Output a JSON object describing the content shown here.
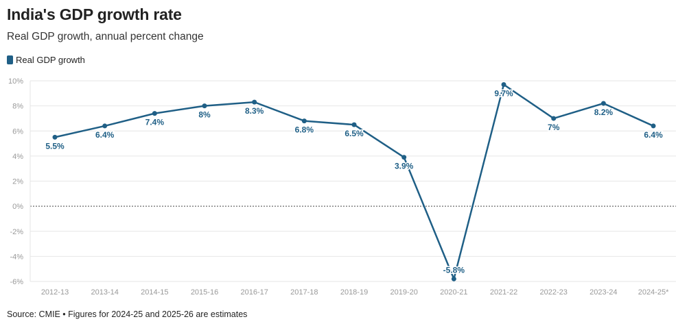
{
  "header": {
    "title": "India's GDP growth rate",
    "subtitle": "Real GDP growth, annual percent change"
  },
  "legend": {
    "label": "Real GDP growth"
  },
  "footer": {
    "source": "Source: CMIE • Figures for 2024-25 and 2025-26 are estimates"
  },
  "colors": {
    "line": "#1f5f86",
    "grid": "#e6e6e6",
    "zero": "#444444",
    "tick": "#999999"
  },
  "chart_data": {
    "type": "line",
    "title": "India's GDP growth rate",
    "subtitle": "Real GDP growth, annual percent change",
    "categories": [
      "2012-13",
      "2013-14",
      "2014-15",
      "2015-16",
      "2016-17",
      "2017-18",
      "2018-19",
      "2019-20",
      "2020-21",
      "2021-22",
      "2022-23",
      "2023-24",
      "2024-25*"
    ],
    "series": [
      {
        "name": "Real GDP growth",
        "values": [
          5.5,
          6.4,
          7.4,
          8.0,
          8.3,
          6.8,
          6.5,
          3.9,
          -5.8,
          9.7,
          7.0,
          8.2,
          6.4
        ],
        "labels": [
          "5.5%",
          "6.4%",
          "7.4%",
          "8%",
          "8.3%",
          "6.8%",
          "6.5%",
          "3.9%",
          "-5.8%",
          "9.7%",
          "7%",
          "8.2%",
          "6.4%"
        ]
      }
    ],
    "ylim": [
      -6,
      10
    ],
    "yticks": [
      10,
      8,
      6,
      4,
      2,
      0,
      -2,
      -4,
      -6
    ],
    "ytick_labels": [
      "10%",
      "8%",
      "6%",
      "4%",
      "2%",
      "0%",
      "-2%",
      "-4%",
      "-6%"
    ],
    "zero_line": "dotted",
    "grid": true,
    "legend_position": "top-left"
  }
}
